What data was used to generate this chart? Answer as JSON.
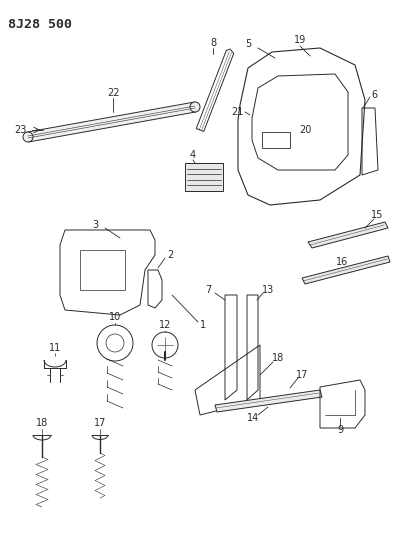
{
  "title": "8J28 500",
  "bg": "#ffffff",
  "lc": "#2a2a2a",
  "lw": 0.7,
  "fs": 7.0,
  "title_fs": 9.5,
  "fig_w": 3.93,
  "fig_h": 5.33,
  "dpi": 100,
  "xlim": [
    0,
    393
  ],
  "ylim": [
    0,
    533
  ]
}
